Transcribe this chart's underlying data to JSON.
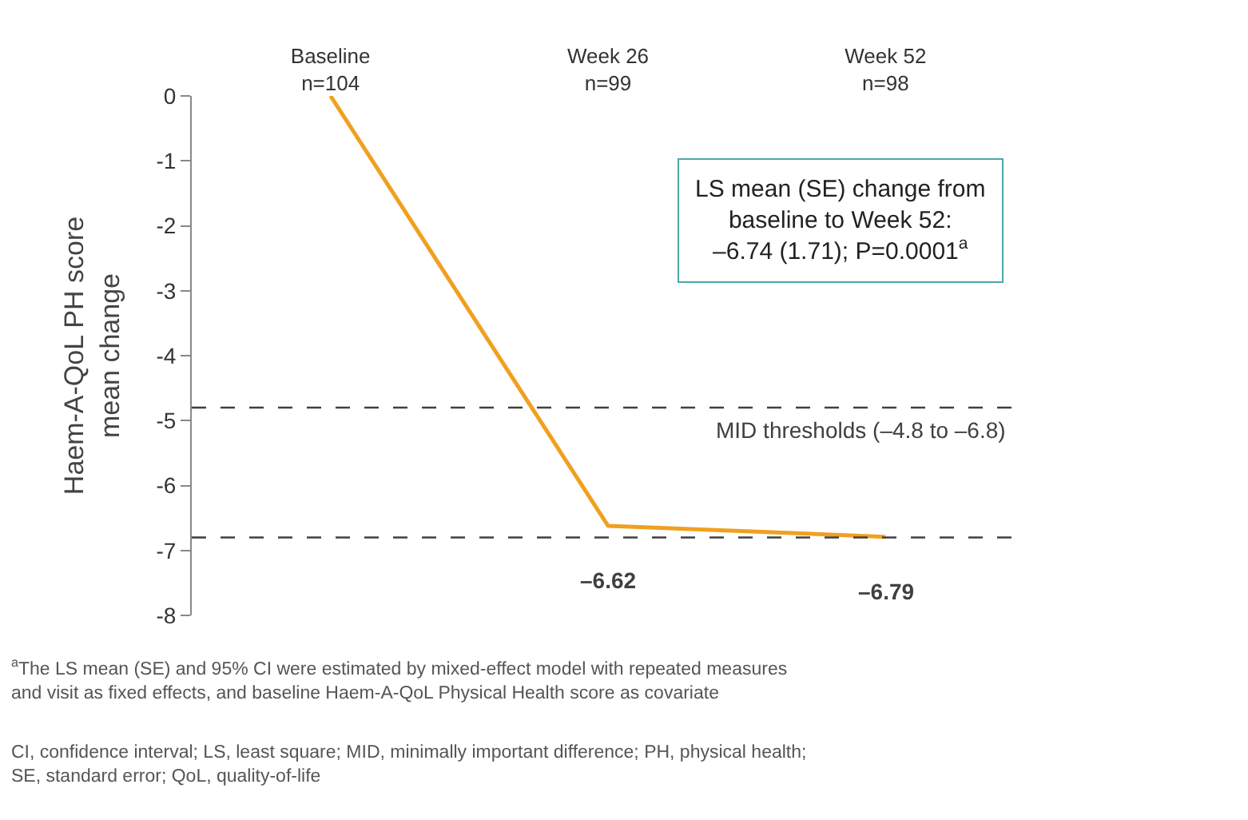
{
  "chart_data": {
    "type": "line",
    "ylabel": "Haem-A-QoL PH score\nmean change",
    "categories": [
      "Baseline\nn=104",
      "Week 26\nn=99",
      "Week 52\nn=98"
    ],
    "series": [
      {
        "color": "#f0a020",
        "values": [
          0,
          -6.62,
          -6.79
        ],
        "value_labels": [
          null,
          "–6.62",
          "–6.79"
        ]
      }
    ],
    "ylim": [
      -8,
      0
    ],
    "yticks": [
      {
        "value": 0,
        "label": "0"
      },
      {
        "value": -1,
        "label": "-1"
      },
      {
        "value": -2,
        "label": "-2"
      },
      {
        "value": -3,
        "label": "-3"
      },
      {
        "value": -4,
        "label": "-4"
      },
      {
        "value": -5,
        "label": "-5"
      },
      {
        "value": -6,
        "label": "-6"
      },
      {
        "value": -7,
        "label": "-7"
      },
      {
        "value": -8,
        "label": "-8"
      }
    ],
    "line_style": "solid",
    "ref_lines": [
      {
        "axis": "y",
        "value": -4.8,
        "label": "MID thresholds (–4.8 to –6.8)",
        "line_style": "dashed",
        "color": "#404040"
      },
      {
        "axis": "y",
        "value": -6.8,
        "label": null,
        "line_style": "dashed",
        "color": "#404040"
      }
    ],
    "annotations": [
      "LS mean (SE) change from\nbaseline to Week 52:\n–6.74 (1.71); P=0.0001$^{a}$",
      "$^{a}$The LS mean (SE) and 95% CI were estimated by mixed-effect model with repeated measures\nand visit as fixed effects, and baseline Haem-A-QoL Physical Health score as covariate",
      "CI, confidence interval; LS, least square; MID, minimally important difference; PH, physical health;\nSE, standard error; QoL, quality-of-life"
    ]
  }
}
